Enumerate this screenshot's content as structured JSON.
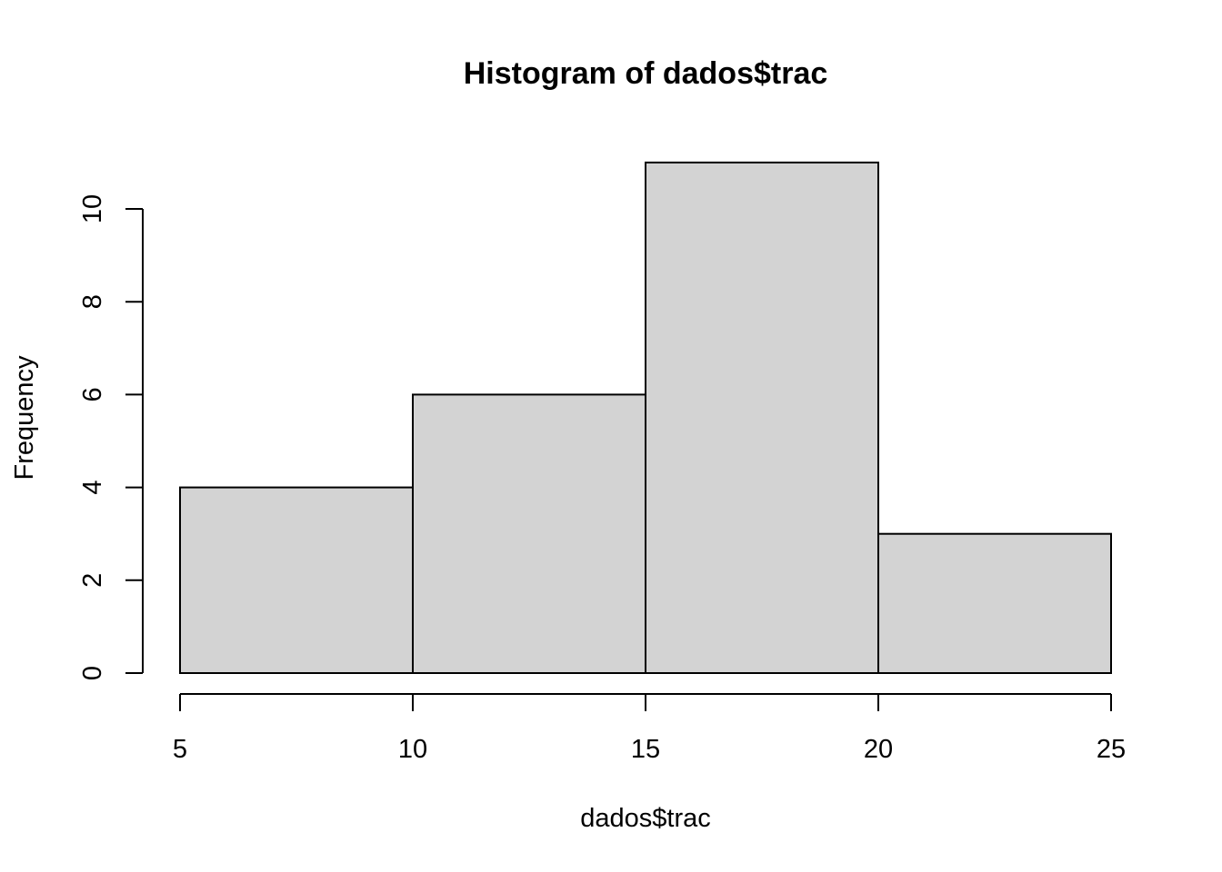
{
  "chart_data": {
    "type": "bar",
    "title": "Histogram of dados$trac",
    "xlabel": "dados$trac",
    "ylabel": "Frequency",
    "bins": [
      {
        "from": 5,
        "to": 10,
        "count": 4
      },
      {
        "from": 10,
        "to": 15,
        "count": 6
      },
      {
        "from": 15,
        "to": 20,
        "count": 11
      },
      {
        "from": 20,
        "to": 25,
        "count": 3
      }
    ],
    "xlim": [
      5,
      25
    ],
    "ylim": [
      0,
      11
    ],
    "x_ticks": [
      "5",
      "10",
      "15",
      "20",
      "25"
    ],
    "y_ticks": [
      "0",
      "2",
      "4",
      "6",
      "8",
      "10"
    ],
    "bar_fill": "#d3d3d3",
    "bar_stroke": "#000000",
    "grid": false,
    "legend": "none"
  }
}
